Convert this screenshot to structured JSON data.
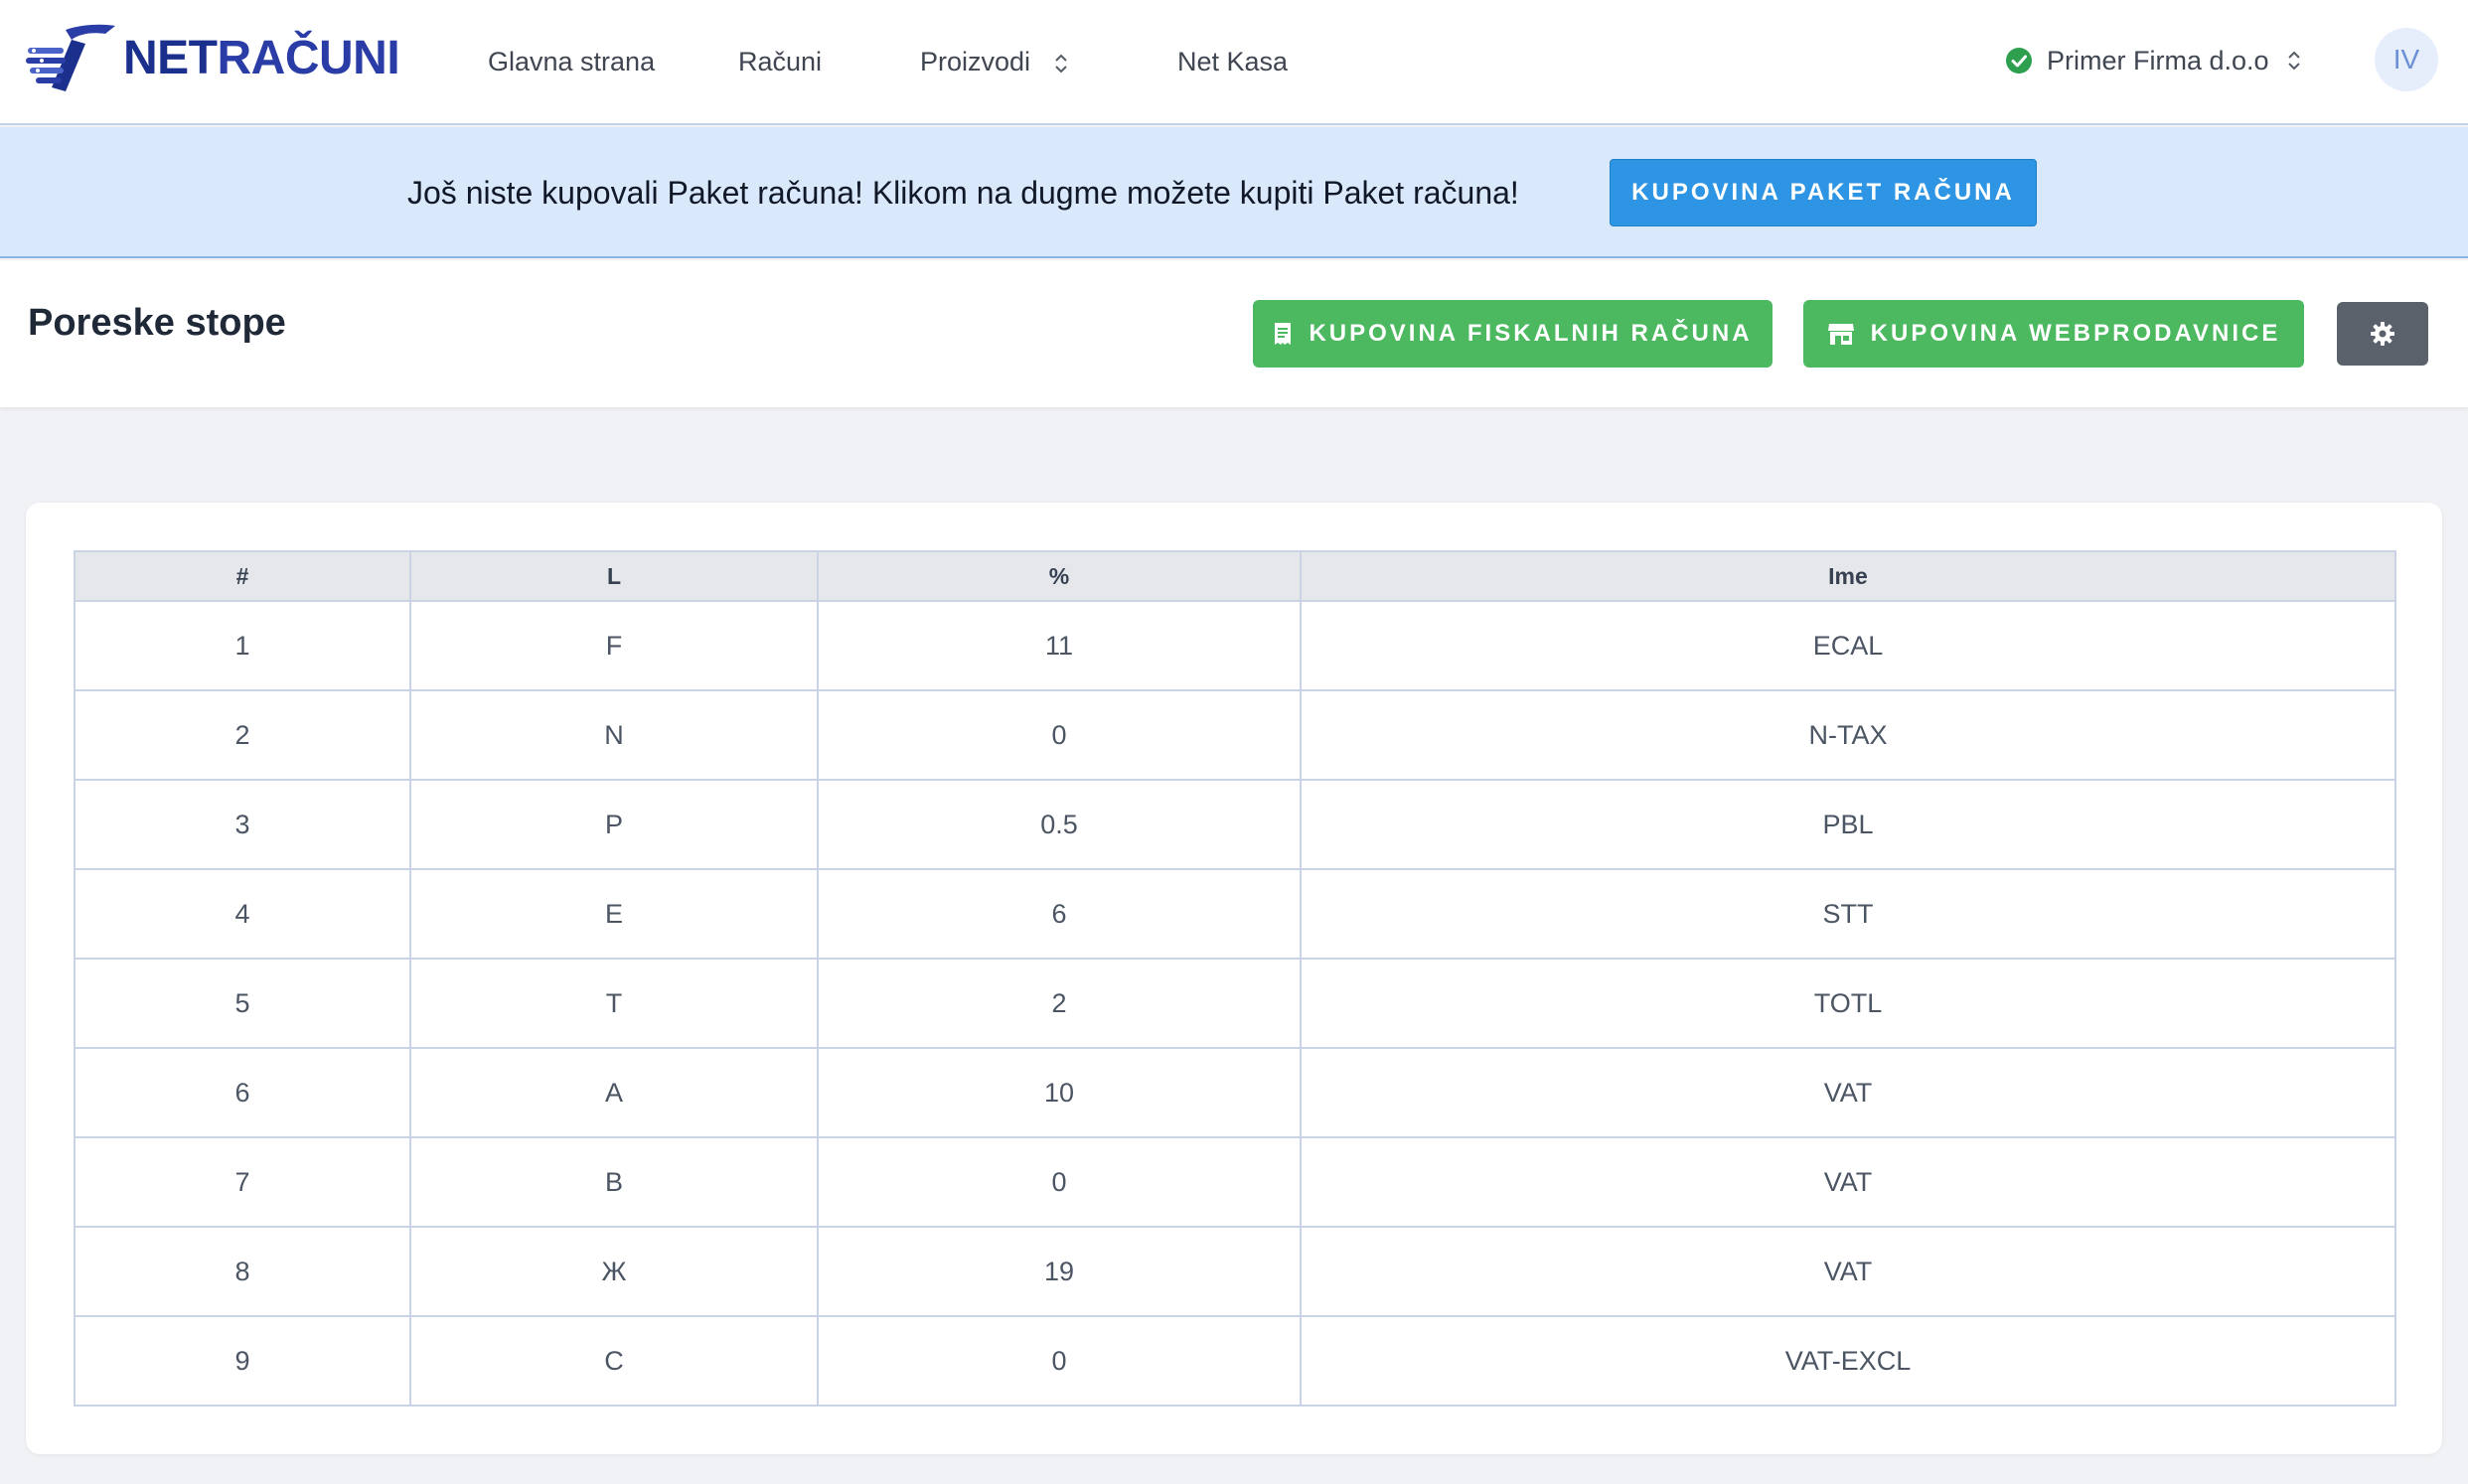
{
  "brand": {
    "net": "NET",
    "racuni": "RAČUNI"
  },
  "nav": {
    "items": [
      {
        "label": "Glavna strana"
      },
      {
        "label": "Računi"
      },
      {
        "label": "Proizvodi"
      },
      {
        "label": "Net Kasa"
      }
    ]
  },
  "company": {
    "name": "Primer Firma d.o.o",
    "status": "verified"
  },
  "user": {
    "initials": "IV"
  },
  "banner": {
    "text": "Još niste kupovali Paket računa! Klikom na dugme možete kupiti Paket računa!",
    "button_label": "KUPOVINA PAKET RAČUNA"
  },
  "page": {
    "title": "Poreske stope",
    "buy_fiscal_label": "KUPOVINA FISKALNIH RAČUNA",
    "buy_webshop_label": "KUPOVINA WEBPRODAVNICE"
  },
  "table": {
    "headers": [
      "#",
      "L",
      "%",
      "Ime"
    ],
    "rows": [
      [
        "1",
        "F",
        "11",
        "ECAL"
      ],
      [
        "2",
        "N",
        "0",
        "N-TAX"
      ],
      [
        "3",
        "P",
        "0.5",
        "PBL"
      ],
      [
        "4",
        "E",
        "6",
        "STT"
      ],
      [
        "5",
        "T",
        "2",
        "TOTL"
      ],
      [
        "6",
        "A",
        "10",
        "VAT"
      ],
      [
        "7",
        "B",
        "0",
        "VAT"
      ],
      [
        "8",
        "Ж",
        "19",
        "VAT"
      ],
      [
        "9",
        "C",
        "0",
        "VAT-EXCL"
      ]
    ]
  },
  "colors": {
    "brand_blue": "#1b2f8c",
    "banner_bg": "#d9e8fb",
    "banner_button": "#2d95e3",
    "green_button": "#4cb85f",
    "gear_button": "#5b616b",
    "status_ok": "#2e9e4f"
  }
}
